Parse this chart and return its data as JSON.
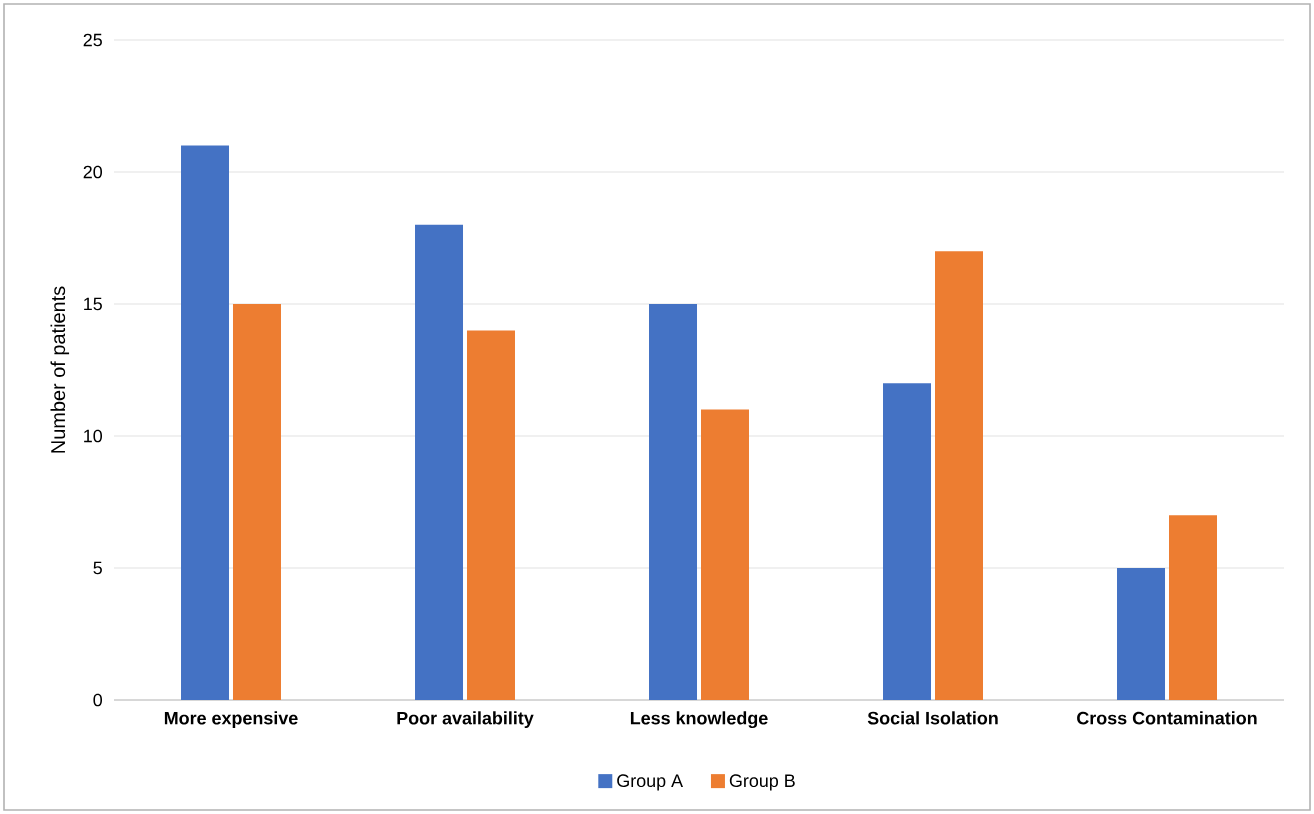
{
  "chart_data": {
    "type": "bar",
    "ylabel": "Number of patients",
    "categories": [
      "More expensive",
      "Poor availability",
      "Less knowledge",
      "Social Isolation",
      "Cross Contamination"
    ],
    "series": [
      {
        "name": "Group A",
        "color": "#4472c4",
        "values": [
          21,
          18,
          15,
          12,
          5
        ]
      },
      {
        "name": "Group B",
        "color": "#ed7d31",
        "values": [
          15,
          14,
          11,
          17,
          7
        ]
      }
    ],
    "ylim": [
      0,
      25
    ],
    "yticks": [
      0,
      5,
      10,
      15,
      20,
      25
    ],
    "grid": "y",
    "legend": "bottom"
  }
}
